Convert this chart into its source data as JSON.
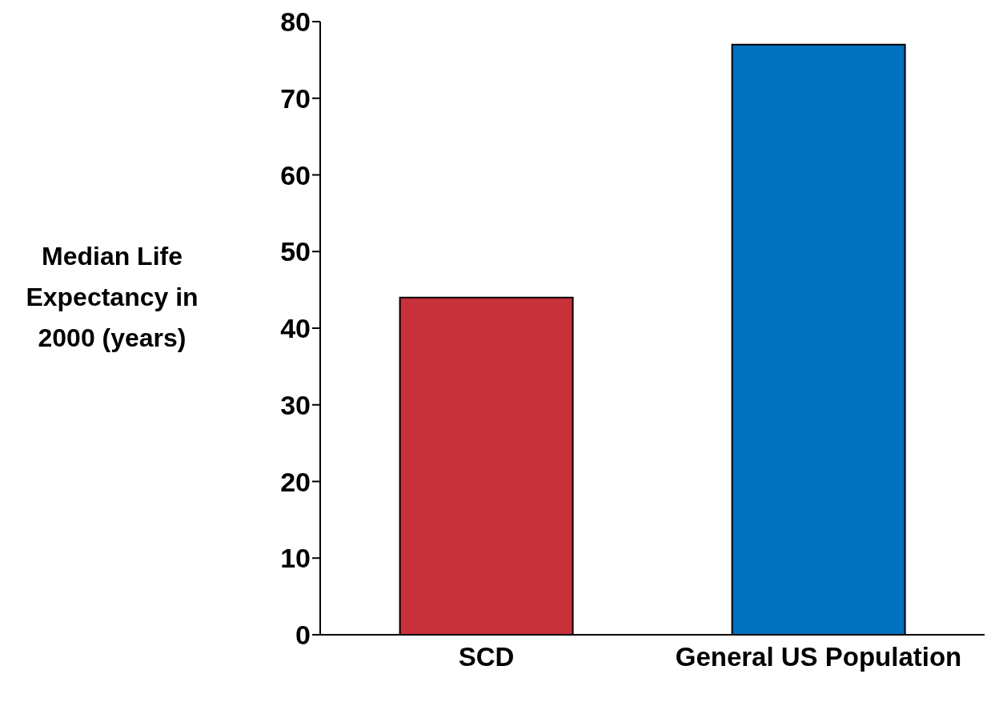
{
  "chart_data": {
    "type": "bar",
    "ylabel": "Median Life Expectancy in 2000 (years)",
    "categories": [
      "SCD",
      "General US Population"
    ],
    "values": [
      44,
      77
    ],
    "colors": [
      "#c8303a",
      "#0070c0"
    ],
    "ylim": [
      0,
      80
    ],
    "yticks": [
      0,
      10,
      20,
      30,
      40,
      50,
      60,
      70,
      80
    ],
    "grid": false,
    "legend": false
  }
}
